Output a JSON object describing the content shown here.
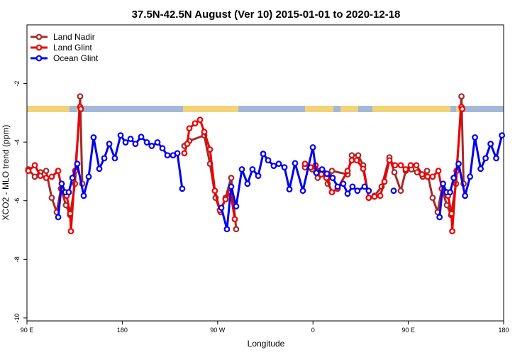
{
  "chart_data": {
    "type": "line",
    "title": "37.5N-42.5N August (Ver 10)   2015-01-01 to 2020-12-18",
    "x_label": "Longitude",
    "y_label": "XCO2 - MLO trend (ppm)",
    "xlim": [
      90,
      540
    ],
    "xticks": [
      {
        "value": 90,
        "label": "90 E"
      },
      180,
      {
        "value": 270,
        "label": "90 W"
      },
      {
        "value": 360,
        "label": "0"
      },
      {
        "value": 450,
        "label": "90 E"
      },
      {
        "value": 540,
        "label": "180"
      }
    ],
    "ylim": [
      -10.1,
      0
    ],
    "yticks": [
      -10,
      -8,
      -6,
      -4,
      -2
    ],
    "legend": "upper left",
    "series": [
      {
        "name": "Land Nadir",
        "color": "#a52a2a",
        "x": [
          91.3,
          97.4,
          102.7,
          108.1,
          113.4,
          118.1,
          122.1,
          126.8,
          130.8,
          135.4,
          140.2,
          142.2,
          null,
          238.6,
          243.3,
          257.4,
          262.8,
          268.1,
          272.8,
          277.5,
          282.8,
          287.5,
          null,
          352.5,
          359.2,
          364.5,
          369.9,
          373.9,
          377.9,
          392.7,
          396.7,
          402.7,
          407.4,
          412.7,
          418.1,
          424.8,
          432.2,
          436.9,
          442.9,
          447.6,
          452.9,
          458.3,
          463.6,
          467.7,
          473.0,
          477.7,
          481.7,
          486.4,
          490.4,
          495.1,
          500.2,
          502.2
        ],
        "values": [
          -4.93,
          -5.18,
          -5.03,
          -4.98,
          -5.9,
          -6.39,
          -5.59,
          -6.15,
          -6.49,
          -5.42,
          -2.44,
          -5.42,
          null,
          -4.13,
          -3.96,
          -3.77,
          -4.74,
          -5.9,
          -6.39,
          -5.9,
          -5.22,
          -6.97,
          null,
          -4.86,
          -4.93,
          -5.22,
          -5.03,
          -5.42,
          -4.98,
          -5.1,
          -4.45,
          -4.45,
          -4.79,
          -5.9,
          -5.83,
          -5.52,
          -4.52,
          -5.03,
          -5.66,
          -4.98,
          -4.93,
          -5.03,
          -5.18,
          -4.98,
          -5.9,
          -6.39,
          -5.59,
          -6.15,
          -6.49,
          -5.42,
          -2.44,
          -5.42
        ]
      },
      {
        "name": "Land Glint",
        "color": "#ee0000",
        "x": [
          91.3,
          97.4,
          102.7,
          108.1,
          113.4,
          119.5,
          122.8,
          127.5,
          130.8,
          131.5,
          135.5,
          140.2,
          140.9,
          null,
          238.6,
          241.3,
          243.3,
          248.7,
          253.4,
          257.4,
          262.8,
          267.4,
          272.1,
          277.5,
          282.2,
          286.2,
          null,
          352.5,
          357.9,
          362.5,
          367.9,
          372.6,
          377.9,
          383.3,
          392.7,
          396.7,
          401.4,
          407.4,
          412.7,
          418.1,
          423.5,
          427.5,
          432.2,
          437.5,
          442.9,
          447.6,
          452.3,
          457.6,
          463.0,
          468.3,
          473.0,
          478.4,
          481.7,
          487.5,
          490.8,
          491.5,
          495.5,
          500.2,
          500.9
        ],
        "values": [
          -4.98,
          -4.79,
          -5.15,
          -5.22,
          -5.18,
          -4.98,
          -5.59,
          -5.83,
          -6.44,
          -7.04,
          -4.98,
          -2.8,
          -2.87,
          null,
          -4.38,
          -4.06,
          -3.53,
          -3.36,
          -3.24,
          -3.65,
          -4.25,
          -5.66,
          -6.32,
          -5.95,
          -5.71,
          -6.63,
          null,
          -4.74,
          -4.86,
          -4.79,
          -5.1,
          -5.22,
          -5.71,
          -5.59,
          -4.98,
          -4.62,
          -4.62,
          -4.91,
          -5.9,
          -5.86,
          -5.83,
          -5.35,
          -4.62,
          -4.79,
          -4.79,
          -4.93,
          -4.79,
          -4.79,
          -5.1,
          -5.18,
          -5.18,
          -4.98,
          -5.59,
          -5.83,
          -6.44,
          -7.04,
          -4.98,
          -2.8,
          -2.87
        ]
      },
      {
        "name": "Ocean Glint",
        "color": "#0000ee",
        "x": [
          119.5,
          122.8,
          126.2,
          129.5,
          132.9,
          137.5,
          143.6,
          148.3,
          152.9,
          158.3,
          163.0,
          167.7,
          173.0,
          178.4,
          183.1,
          187.8,
          192.4,
          197.8,
          203.2,
          207.8,
          213.2,
          217.9,
          222.6,
          227.9,
          232.0,
          236.6,
          null,
          273.5,
          278.8,
          282.8,
          287.5,
          292.9,
          298.2,
          302.9,
          308.3,
          313.0,
          317.7,
          323.0,
          327.7,
          333.1,
          337.8,
          343.1,
          350.5,
          359.9,
          363.2,
          368.6,
          373.2,
          378.6,
          383.3,
          388.6,
          392.7,
          397.3,
          402.0,
          408.7,
          412.7,
          null,
          436.2,
          null,
          479.5,
          482.8,
          486.2,
          489.5,
          492.9,
          497.5,
          503.6,
          508.3,
          512.9,
          518.3,
          523.0,
          527.7,
          533.0,
          538.4
        ],
        "values": [
          -6.56,
          -5.42,
          -5.71,
          -5.71,
          -5.22,
          -4.74,
          -5.83,
          -5.18,
          -3.84,
          -4.91,
          -4.55,
          -4.06,
          -4.55,
          -3.77,
          -4.01,
          -3.89,
          -4.06,
          -3.82,
          -4.01,
          -4.13,
          -4.01,
          -4.21,
          -4.45,
          -4.45,
          -4.38,
          -5.59,
          null,
          -6.24,
          -6.97,
          -5.52,
          -6.19,
          -4.93,
          -5.42,
          -4.93,
          -5.15,
          -4.4,
          -4.62,
          -4.81,
          -4.74,
          -4.86,
          -5.61,
          -4.72,
          -5.66,
          -4.18,
          -5.05,
          -4.93,
          -5.08,
          -5.22,
          -5.52,
          -5.42,
          -5.76,
          -5.52,
          -5.66,
          -5.52,
          -5.66,
          null,
          -5.66,
          null,
          -6.56,
          -5.42,
          -5.71,
          -5.71,
          -5.22,
          -4.74,
          -5.83,
          -5.18,
          -3.84,
          -4.91,
          -4.55,
          -4.06,
          -4.55,
          -3.77
        ]
      }
    ]
  }
}
